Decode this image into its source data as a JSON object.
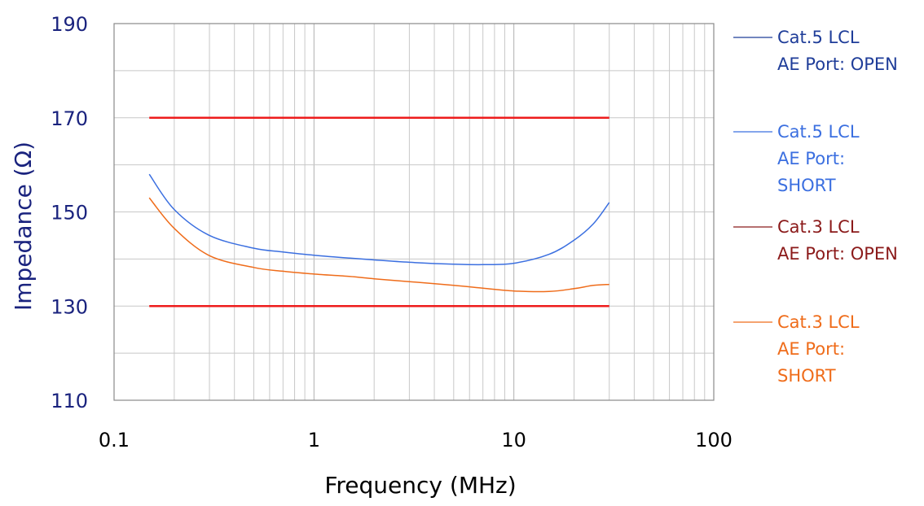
{
  "chart_data": {
    "type": "line",
    "xlabel": "Frequency (MHz)",
    "ylabel": "Impedance (Ω)",
    "x_scale": "log",
    "xlim": [
      0.1,
      100
    ],
    "ylim": [
      110,
      190
    ],
    "x_ticks": [
      0.1,
      1,
      10,
      100
    ],
    "x_tick_labels": [
      "0.1",
      "1",
      "10",
      "100"
    ],
    "y_ticks": [
      110,
      130,
      150,
      170,
      190
    ],
    "y_tick_labels": [
      "110",
      "130",
      "150",
      "170",
      "190"
    ],
    "grid": true,
    "legend_position": "right",
    "limit_lines": [
      {
        "y": 170,
        "x_range": [
          0.15,
          30
        ],
        "color": "#ee1c1c"
      },
      {
        "y": 130,
        "x_range": [
          0.15,
          30
        ],
        "color": "#ee1c1c"
      }
    ],
    "series": [
      {
        "name": "Cat.5 LCL AE Port: OPEN",
        "legend_lines": [
          "Cat.5 LCL",
          "AE Port: OPEN"
        ],
        "color": "#1f3d99",
        "x": [],
        "y": []
      },
      {
        "name": "Cat.5 LCL AE Port: SHORT",
        "legend_lines": [
          "Cat.5 LCL",
          "AE Port:",
          "SHORT"
        ],
        "color": "#3b6fe0",
        "x": [
          0.15,
          0.2,
          0.3,
          0.5,
          0.7,
          1,
          1.5,
          2,
          3,
          5,
          7,
          10,
          15,
          20,
          25,
          30
        ],
        "y": [
          158,
          150.5,
          145,
          142.3,
          141.5,
          140.8,
          140.2,
          139.8,
          139.3,
          138.9,
          138.8,
          139.1,
          141,
          144,
          147.5,
          152
        ]
      },
      {
        "name": "Cat.3 LCL AE Port: OPEN",
        "legend_lines": [
          "Cat.3 LCL",
          "AE Port: OPEN"
        ],
        "color": "#8b1a1a",
        "x": [],
        "y": []
      },
      {
        "name": "Cat.3 LCL AE Port: SHORT",
        "legend_lines": [
          "Cat.3 LCL",
          "AE Port:",
          "SHORT"
        ],
        "color": "#ef6c1a",
        "x": [
          0.15,
          0.2,
          0.3,
          0.5,
          0.7,
          1,
          1.5,
          2,
          3,
          5,
          7,
          10,
          15,
          20,
          25,
          30
        ],
        "y": [
          153,
          146.5,
          140.7,
          138.2,
          137.4,
          136.8,
          136.3,
          135.8,
          135.2,
          134.4,
          133.8,
          133.2,
          133.1,
          133.7,
          134.4,
          134.6
        ]
      }
    ]
  }
}
